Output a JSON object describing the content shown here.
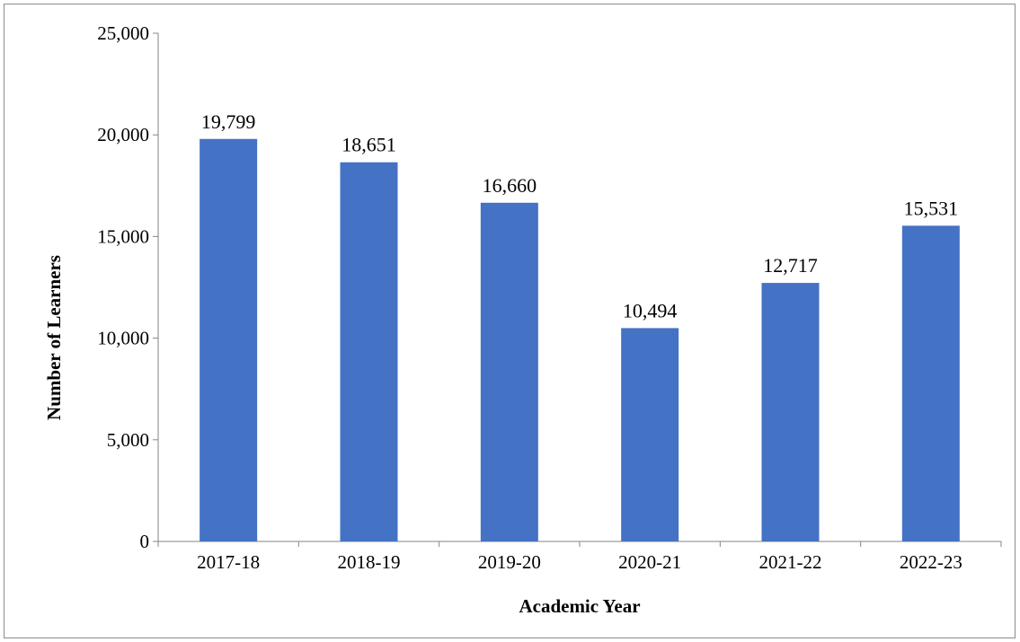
{
  "chart_data": {
    "type": "bar",
    "title": "",
    "xlabel": "Academic Year",
    "ylabel": "Number of Learners",
    "categories": [
      "2017-18",
      "2018-19",
      "2019-20",
      "2020-21",
      "2021-22",
      "2022-23"
    ],
    "values": [
      19799,
      18651,
      16660,
      10494,
      12717,
      15531
    ],
    "data_labels": [
      "19,799",
      "18,651",
      "16,660",
      "10,494",
      "12,717",
      "15,531"
    ],
    "ylim": [
      0,
      25000
    ],
    "y_ticks": [
      0,
      5000,
      10000,
      15000,
      20000,
      25000
    ],
    "y_tick_labels": [
      "0",
      "5,000",
      "10,000",
      "15,000",
      "20,000",
      "25,000"
    ],
    "grid": false,
    "legend": "none",
    "colors": {
      "bar": "#4472C4",
      "axis": "#868686",
      "border": "#8c8c8c"
    }
  }
}
